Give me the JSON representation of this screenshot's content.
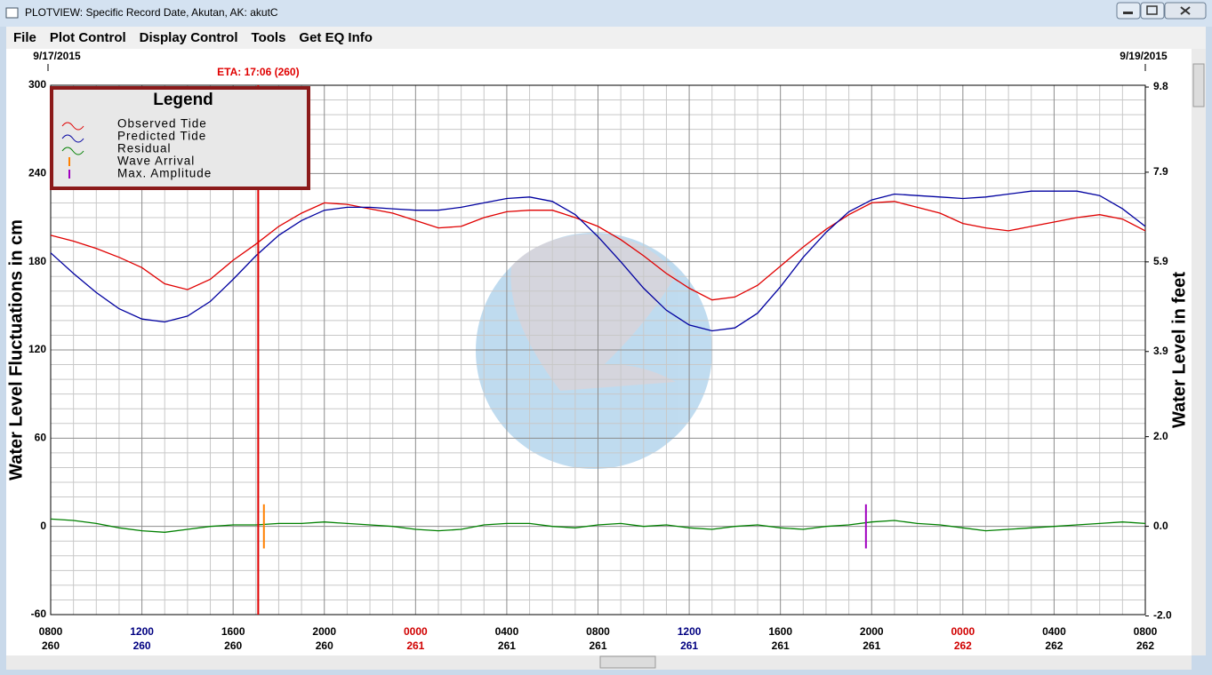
{
  "window": {
    "title": "PLOTVIEW: Specific Record Date, Akutan, AK: akutC"
  },
  "menu": [
    "File",
    "Plot Control",
    "Display Control",
    "Tools",
    "Get EQ Info"
  ],
  "chart_data": {
    "type": "line",
    "start_date": "9/17/2015",
    "end_date": "9/19/2015",
    "y_label": "Water Level Fluctuations in cm",
    "y2_label": "Water Level in feet",
    "legend_title": "Legend",
    "grid": true,
    "xlim": [
      0,
      48
    ],
    "xticks": [
      {
        "value": 0,
        "label": "0800"
      },
      {
        "value": 4,
        "label": "1200"
      },
      {
        "value": 8,
        "label": "1600"
      },
      {
        "value": 12,
        "label": "2000"
      },
      {
        "value": 16,
        "label": "0000"
      },
      {
        "value": 20,
        "label": "0400"
      },
      {
        "value": 24,
        "label": "0800"
      },
      {
        "value": 28,
        "label": "1200"
      },
      {
        "value": 32,
        "label": "1600"
      },
      {
        "value": 36,
        "label": "2000"
      },
      {
        "value": 40,
        "label": "0000"
      },
      {
        "value": 44,
        "label": "0400"
      },
      {
        "value": 48,
        "label": "0800"
      }
    ],
    "xtick_days": [
      "260",
      "260",
      "260",
      "260",
      "261",
      "261",
      "261",
      "261",
      "261",
      "261",
      "262",
      "262",
      "262"
    ],
    "xtick_colors": [
      "#000000",
      "#000080",
      "#000000",
      "#000000",
      "#d00000",
      "#000000",
      "#000000",
      "#000080",
      "#000000",
      "#000000",
      "#d00000",
      "#000000",
      "#000000"
    ],
    "ylim": [
      -60,
      300
    ],
    "yticks": [
      -60,
      0,
      60,
      120,
      180,
      240,
      300
    ],
    "y2lim": [
      -1.97,
      9.84
    ],
    "y2ticks": [
      {
        "value": -2,
        "label": "-2.0"
      },
      {
        "value": 0,
        "label": "0.0"
      },
      {
        "value": 2,
        "label": "2.0"
      },
      3.9,
      5.9,
      7.9,
      9.8
    ],
    "x": [
      0,
      1,
      2,
      3,
      4,
      5,
      6,
      7,
      8,
      9,
      10,
      11,
      12,
      13,
      14,
      15,
      16,
      17,
      18,
      19,
      20,
      21,
      22,
      23,
      24,
      25,
      26,
      27,
      28,
      29,
      30,
      31,
      32,
      33,
      34,
      35,
      36,
      37,
      38,
      39,
      40,
      41,
      42,
      43,
      44,
      45,
      46,
      47,
      48
    ],
    "series": [
      {
        "name": "Observed Tide",
        "color": "#e00000",
        "values": [
          198,
          194,
          189,
          183,
          176,
          165,
          161,
          168,
          181,
          192,
          204,
          213,
          220,
          219,
          216,
          213,
          208,
          203,
          204,
          210,
          214,
          215,
          215,
          210,
          204,
          195,
          184,
          172,
          162,
          154,
          156,
          164,
          177,
          190,
          202,
          212,
          220,
          221,
          217,
          213,
          206,
          203,
          201,
          204,
          207,
          210,
          212,
          209,
          201
        ]
      },
      {
        "name": "Predicted Tide",
        "color": "#0000a0",
        "values": [
          186,
          172,
          159,
          148,
          141,
          139,
          143,
          153,
          168,
          184,
          198,
          208,
          215,
          217,
          217,
          216,
          215,
          215,
          217,
          220,
          223,
          224,
          221,
          212,
          197,
          180,
          162,
          147,
          137,
          133,
          135,
          145,
          163,
          183,
          200,
          214,
          222,
          226,
          225,
          224,
          223,
          224,
          226,
          228,
          228,
          228,
          225,
          216,
          204
        ]
      },
      {
        "name": "Residual",
        "color": "#008000",
        "values": [
          5,
          4,
          2,
          -1,
          -3,
          -4,
          -2,
          0,
          1,
          1,
          2,
          2,
          3,
          2,
          1,
          0,
          -2,
          -3,
          -2,
          1,
          2,
          2,
          0,
          -1,
          1,
          2,
          0,
          1,
          -1,
          -2,
          0,
          1,
          -1,
          -2,
          0,
          1,
          3,
          4,
          2,
          1,
          -1,
          -3,
          -2,
          -1,
          0,
          1,
          2,
          3,
          2
        ]
      }
    ],
    "markers": [
      {
        "name": "Wave Arrival",
        "color": "#ff8000",
        "x": 9.35
      },
      {
        "name": "Max. Amplitude",
        "color": "#a000c0",
        "x": 35.75
      }
    ],
    "eta": {
      "label": "ETA: 17:06 (260)",
      "color": "#e00000",
      "x": 9.1
    }
  }
}
